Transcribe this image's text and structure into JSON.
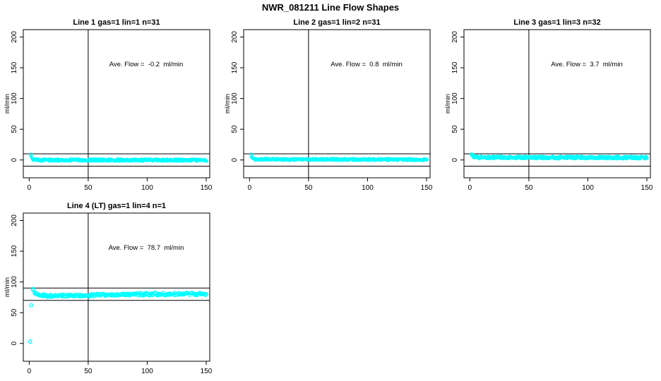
{
  "title": "NWR_081211  Line Flow Shapes",
  "colors": {
    "points": "#00FFFF",
    "axis": "#000000",
    "background": "#FFFFFF"
  },
  "chart_data": [
    {
      "type": "scatter",
      "title": "Line 1 gas=1 lin=1 n=31",
      "annotation": "Ave. Flow =  -0.2  ml/min",
      "ave_flow_ml_min": -0.2,
      "n_traces": 31,
      "ylabel": "ml/min",
      "xlim": [
        -5,
        153
      ],
      "ylim": [
        -29,
        212
      ],
      "xticks": [
        0,
        50,
        100,
        150
      ],
      "yticks": [
        0,
        50,
        100,
        150,
        200
      ],
      "vline_x": 50,
      "hlines": [
        10,
        -10
      ],
      "head_points": [
        [
          1.5,
          8.5
        ]
      ],
      "band_profile": [
        [
          2,
          4.5
        ],
        [
          3,
          1.5
        ],
        [
          5,
          0.5
        ],
        [
          10,
          0
        ],
        [
          150,
          -0.3
        ]
      ],
      "band_x_range": [
        2,
        150
      ],
      "band_step": 1,
      "passes": 3,
      "jitter": 2.0,
      "marker": {
        "shape": "dot",
        "radius": 2.1
      }
    },
    {
      "type": "scatter",
      "title": "Line 2 gas=1 lin=2 n=31",
      "annotation": "Ave. Flow =  0.8  ml/min",
      "ave_flow_ml_min": 0.8,
      "n_traces": 31,
      "ylabel": "ml/min",
      "xlim": [
        -5,
        153
      ],
      "ylim": [
        -29,
        212
      ],
      "xticks": [
        0,
        50,
        100,
        150
      ],
      "yticks": [
        0,
        50,
        100,
        150,
        200
      ],
      "vline_x": 50,
      "hlines": [
        10,
        -10
      ],
      "head_points": [
        [
          1.5,
          8.5
        ]
      ],
      "band_profile": [
        [
          2,
          5
        ],
        [
          3,
          2.5
        ],
        [
          5,
          1.5
        ],
        [
          10,
          1
        ],
        [
          150,
          0.7
        ]
      ],
      "band_x_range": [
        2,
        150
      ],
      "band_step": 1,
      "passes": 3,
      "jitter": 1.8,
      "marker": {
        "shape": "dot",
        "radius": 2.1
      }
    },
    {
      "type": "scatter",
      "title": "Line 3 gas=1 lin=3 n=32",
      "annotation": "Ave. Flow =  3.7  ml/min",
      "ave_flow_ml_min": 3.7,
      "n_traces": 32,
      "ylabel": "ml/min",
      "xlim": [
        -5,
        153
      ],
      "ylim": [
        -29,
        212
      ],
      "xticks": [
        0,
        50,
        100,
        150
      ],
      "yticks": [
        0,
        50,
        100,
        150,
        200
      ],
      "vline_x": 50,
      "hlines": [
        10,
        -10
      ],
      "head_points": [
        [
          1.5,
          9
        ]
      ],
      "band_profile": [
        [
          2,
          7
        ],
        [
          4,
          5
        ],
        [
          8,
          4.2
        ],
        [
          150,
          3.9
        ]
      ],
      "band_x_range": [
        2,
        150
      ],
      "band_step": 1,
      "passes": 3,
      "jitter": 2.4,
      "marker": {
        "shape": "dot",
        "radius": 2.1
      }
    },
    {
      "type": "scatter",
      "title": "Line 4 (LT) gas=1 lin=4 n=1",
      "annotation": "Ave. Flow =  78.7  ml/min",
      "ave_flow_ml_min": 78.7,
      "n_traces": 1,
      "ylabel": "ml/min",
      "xlim": [
        -5,
        153
      ],
      "ylim": [
        -29,
        212
      ],
      "xticks": [
        0,
        50,
        100,
        150
      ],
      "yticks": [
        0,
        50,
        100,
        150,
        200
      ],
      "vline_x": 50,
      "hlines": [
        90,
        70
      ],
      "head_points": [
        [
          0.8,
          3
        ],
        [
          1.8,
          62
        ]
      ],
      "band_profile": [
        [
          3,
          88
        ],
        [
          4,
          84.5
        ],
        [
          5,
          82
        ],
        [
          7,
          80
        ],
        [
          9,
          78.5
        ],
        [
          12,
          77.5
        ],
        [
          18,
          76.8
        ],
        [
          30,
          77.3
        ],
        [
          45,
          78.2
        ],
        [
          60,
          79
        ],
        [
          80,
          79.6
        ],
        [
          100,
          80
        ],
        [
          120,
          80.3
        ],
        [
          150,
          80.6
        ]
      ],
      "band_x_range": [
        3,
        150
      ],
      "band_step": 0.75,
      "passes": 1,
      "jitter": 2.2,
      "marker": {
        "shape": "circle",
        "radius": 2.3
      }
    }
  ]
}
